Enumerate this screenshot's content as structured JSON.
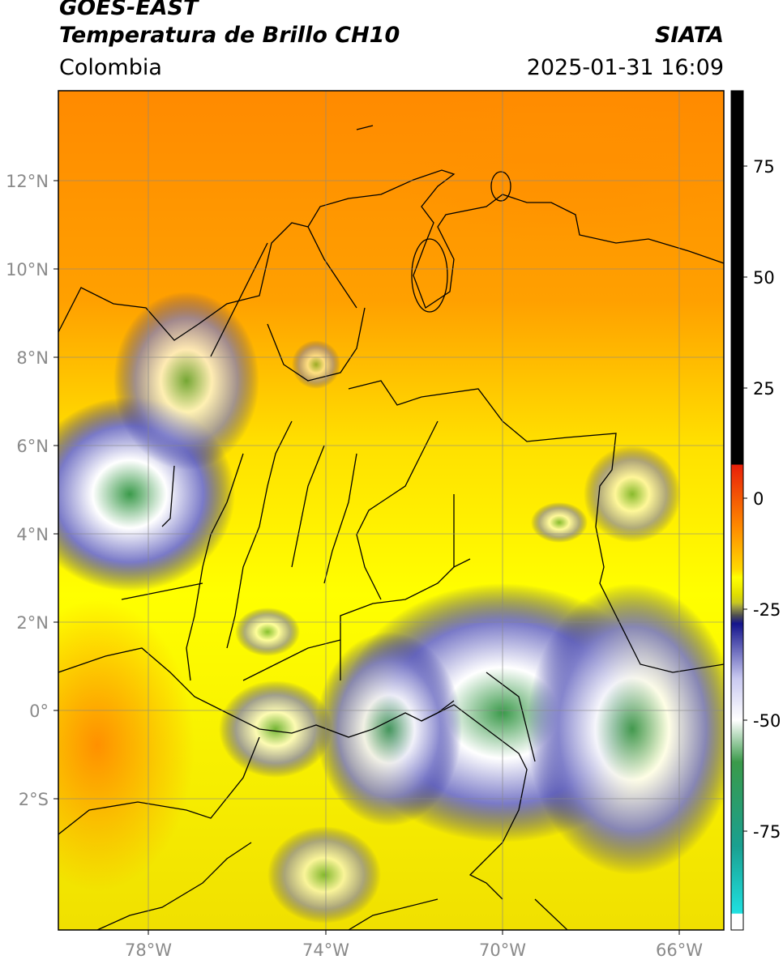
{
  "header": {
    "satellite": "GOES-EAST",
    "product": "Temperatura de Brillo CH10",
    "region": "Colombia",
    "brand": "SIATA",
    "datetime": "2025-01-31 16:09"
  },
  "map": {
    "lat_ticks": [
      "12°N",
      "10°N",
      "8°N",
      "6°N",
      "4°N",
      "2°N",
      "0°",
      "2°S"
    ],
    "lon_ticks": [
      "78°W",
      "74°W",
      "70°W",
      "66°W"
    ],
    "grid": true
  },
  "colorbar": {
    "ticks": [
      "75",
      "50",
      "25",
      "0",
      "-25",
      "-50",
      "-75"
    ],
    "colors": {
      "warm": "#000000",
      "red": "#e8200a",
      "orange": "#ff9a00",
      "yellow": "#ffff00",
      "olive": "#8a8a2a",
      "navy": "#14148c",
      "white": "#ffffff",
      "green": "#3a9a4a",
      "teal": "#29d5c5"
    }
  }
}
